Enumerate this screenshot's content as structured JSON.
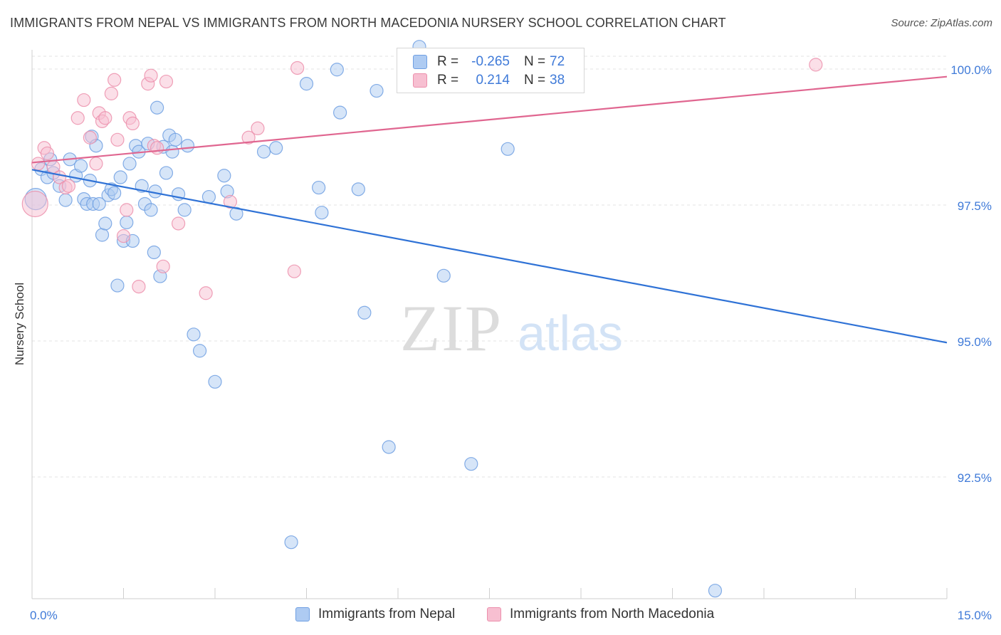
{
  "header": {
    "title": "IMMIGRANTS FROM NEPAL VS IMMIGRANTS FROM NORTH MACEDONIA NURSERY SCHOOL CORRELATION CHART",
    "source": "Source: ZipAtlas.com"
  },
  "watermark": {
    "zip": "ZIP",
    "atlas": "atlas"
  },
  "legend": {
    "rows": [
      {
        "r_label": "R =",
        "r_value": "-0.265",
        "n_label": "N =",
        "n_value": "72"
      },
      {
        "r_label": "R =",
        "r_value": "0.214",
        "n_label": "N =",
        "n_value": "38"
      }
    ]
  },
  "colors": {
    "blue_fill": "#aecbf2",
    "blue_stroke": "#6f9fe2",
    "blue_line": "#2f72d6",
    "pink_fill": "#f7bfd1",
    "pink_stroke": "#ec8fac",
    "pink_line": "#e06690",
    "tick_text": "#3f7ad8",
    "grid": "#e3e3e3"
  },
  "chart_data": {
    "type": "scatter",
    "title": "IMMIGRANTS FROM NEPAL VS IMMIGRANTS FROM NORTH MACEDONIA NURSERY SCHOOL CORRELATION CHART",
    "xlabel": "",
    "ylabel": "Nursery School",
    "xlim": [
      0,
      15
    ],
    "ylim": [
      90.2,
      100.4
    ],
    "x_tick_labels": [
      "0.0%",
      "15.0%"
    ],
    "y_ticks": [
      92.5,
      95.0,
      97.5,
      100.0
    ],
    "y_tick_labels": [
      "92.5%",
      "95.0%",
      "97.5%",
      "100.0%"
    ],
    "grid": true,
    "legend_position": "bottom",
    "series": [
      {
        "name": "Immigrants from Nepal",
        "color": "blue",
        "trend": {
          "x": [
            0,
            15
          ],
          "y": [
            98.15,
            94.97
          ]
        },
        "points": [
          [
            0.06,
            97.61,
            15
          ],
          [
            0.15,
            98.16,
            9
          ],
          [
            0.25,
            98.01,
            9
          ],
          [
            0.3,
            98.34,
            9
          ],
          [
            0.35,
            98.09,
            9
          ],
          [
            0.45,
            97.85,
            9
          ],
          [
            0.55,
            97.59,
            9
          ],
          [
            0.62,
            98.34,
            9
          ],
          [
            0.72,
            98.04,
            9
          ],
          [
            0.8,
            98.22,
            9
          ],
          [
            0.85,
            97.61,
            9
          ],
          [
            0.9,
            97.52,
            9
          ],
          [
            0.95,
            97.95,
            9
          ],
          [
            0.98,
            98.76,
            9
          ],
          [
            1.0,
            97.52,
            9
          ],
          [
            1.05,
            98.59,
            9
          ],
          [
            1.1,
            97.52,
            9
          ],
          [
            1.15,
            96.95,
            9
          ],
          [
            1.2,
            97.16,
            9
          ],
          [
            1.25,
            97.68,
            9
          ],
          [
            1.3,
            97.79,
            9
          ],
          [
            1.35,
            97.72,
            9
          ],
          [
            1.4,
            96.02,
            9
          ],
          [
            1.45,
            98.01,
            9
          ],
          [
            1.5,
            96.84,
            9
          ],
          [
            1.55,
            97.18,
            9
          ],
          [
            1.6,
            98.26,
            9
          ],
          [
            1.65,
            96.84,
            9
          ],
          [
            1.7,
            98.59,
            9
          ],
          [
            1.75,
            98.48,
            9
          ],
          [
            1.8,
            97.85,
            9
          ],
          [
            1.85,
            97.52,
            9
          ],
          [
            1.9,
            98.63,
            9
          ],
          [
            1.95,
            97.41,
            9
          ],
          [
            2.0,
            96.63,
            9
          ],
          [
            2.02,
            97.75,
            9
          ],
          [
            2.05,
            99.29,
            9
          ],
          [
            2.1,
            96.19,
            9
          ],
          [
            2.15,
            98.57,
            9
          ],
          [
            2.2,
            98.09,
            9
          ],
          [
            2.25,
            98.78,
            9
          ],
          [
            2.3,
            98.48,
            9
          ],
          [
            2.35,
            98.7,
            9
          ],
          [
            2.4,
            97.7,
            9
          ],
          [
            2.5,
            97.41,
            9
          ],
          [
            2.55,
            98.59,
            9
          ],
          [
            2.65,
            95.12,
            9
          ],
          [
            2.75,
            94.82,
            9
          ],
          [
            2.9,
            97.65,
            9
          ],
          [
            3.0,
            94.25,
            9
          ],
          [
            3.15,
            98.04,
            9
          ],
          [
            3.2,
            97.75,
            9
          ],
          [
            3.35,
            97.34,
            9
          ],
          [
            3.8,
            98.48,
            9
          ],
          [
            4.0,
            98.55,
            9
          ],
          [
            4.25,
            91.3,
            9
          ],
          [
            4.5,
            99.73,
            9
          ],
          [
            4.7,
            97.82,
            9
          ],
          [
            4.75,
            97.36,
            9
          ],
          [
            5.0,
            99.99,
            9
          ],
          [
            5.05,
            99.2,
            9
          ],
          [
            5.35,
            97.79,
            9
          ],
          [
            5.45,
            95.52,
            9
          ],
          [
            5.65,
            99.6,
            9
          ],
          [
            5.85,
            93.05,
            9
          ],
          [
            6.35,
            100.41,
            9
          ],
          [
            6.75,
            96.2,
            9
          ],
          [
            7.2,
            92.74,
            9
          ],
          [
            7.8,
            98.53,
            9
          ],
          [
            7.95,
            100.08,
            9
          ],
          [
            11.2,
            90.41,
            9
          ],
          [
            6.6,
            100.08,
            9
          ]
        ]
      },
      {
        "name": "Immigrants from North Macedonia",
        "color": "pink",
        "trend": {
          "x": [
            0,
            15
          ],
          "y": [
            98.28,
            99.86
          ]
        },
        "points": [
          [
            0.05,
            97.52,
            18
          ],
          [
            0.1,
            98.26,
            9
          ],
          [
            0.2,
            98.55,
            9
          ],
          [
            0.25,
            98.45,
            9
          ],
          [
            0.35,
            98.2,
            9
          ],
          [
            0.45,
            98.01,
            9
          ],
          [
            0.55,
            97.82,
            9
          ],
          [
            0.6,
            97.85,
            9
          ],
          [
            0.75,
            99.1,
            9
          ],
          [
            0.85,
            99.43,
            9
          ],
          [
            0.95,
            98.74,
            9
          ],
          [
            1.05,
            98.26,
            9
          ],
          [
            1.1,
            99.19,
            9
          ],
          [
            1.15,
            99.04,
            9
          ],
          [
            1.2,
            99.1,
            9
          ],
          [
            1.3,
            99.55,
            9
          ],
          [
            1.35,
            99.8,
            9
          ],
          [
            1.4,
            98.7,
            9
          ],
          [
            1.5,
            96.93,
            9
          ],
          [
            1.55,
            97.41,
            9
          ],
          [
            1.6,
            99.1,
            9
          ],
          [
            1.65,
            99.0,
            9
          ],
          [
            1.75,
            96.0,
            9
          ],
          [
            1.9,
            99.73,
            9
          ],
          [
            1.95,
            99.88,
            9
          ],
          [
            2.0,
            98.59,
            9
          ],
          [
            2.05,
            98.55,
            9
          ],
          [
            2.15,
            96.37,
            9
          ],
          [
            2.2,
            99.77,
            9
          ],
          [
            2.4,
            97.16,
            9
          ],
          [
            2.85,
            95.88,
            9
          ],
          [
            3.25,
            97.56,
            9
          ],
          [
            3.55,
            98.74,
            9
          ],
          [
            3.7,
            98.91,
            9
          ],
          [
            4.35,
            100.02,
            9
          ],
          [
            4.3,
            96.28,
            9
          ],
          [
            8.15,
            100.08,
            9
          ],
          [
            12.85,
            100.08,
            9
          ]
        ]
      }
    ]
  },
  "bottom_legend": {
    "items": [
      {
        "label": "Immigrants from Nepal"
      },
      {
        "label": "Immigrants from North Macedonia"
      }
    ]
  }
}
